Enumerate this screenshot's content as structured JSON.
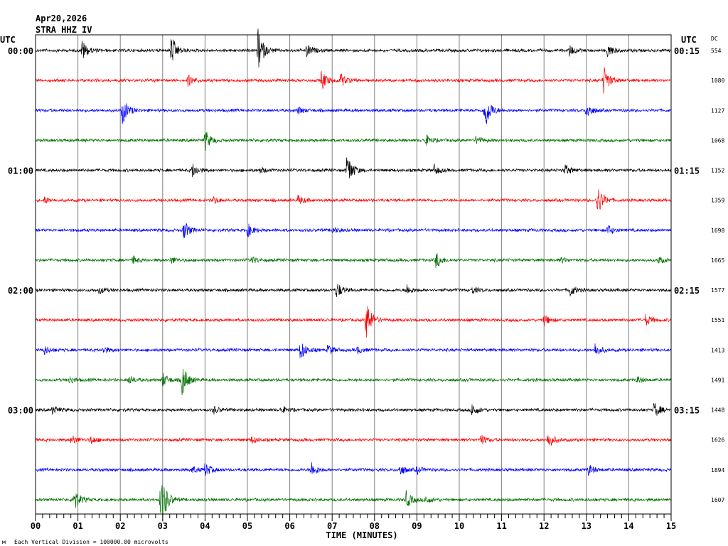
{
  "chart_data": {
    "type": "line",
    "title_date": "Apr20,2026",
    "title_station": "STRA HHZ IV",
    "left_tz": "UTC",
    "right_tz": "UTC",
    "dc_header": "DC",
    "xlabel": "TIME (MINUTES)",
    "xlim": [
      0,
      15
    ],
    "x_ticks": [
      "00",
      "01",
      "02",
      "03",
      "04",
      "05",
      "06",
      "07",
      "08",
      "09",
      "10",
      "11",
      "12",
      "13",
      "14",
      "15"
    ],
    "left_labels": [
      "00:00",
      "01:00",
      "02:00",
      "03:00"
    ],
    "right_labels": [
      "00:15",
      "01:15",
      "02:15",
      "03:15"
    ],
    "footer": "Each Vertical Division = 100000.00 microvolts",
    "footer_mark": "м",
    "colors": [
      "#000000",
      "#ff0000",
      "#0000ff",
      "#007000"
    ],
    "traces": [
      {
        "dc": "554",
        "events": [
          [
            1.1,
            15
          ],
          [
            3.2,
            22
          ],
          [
            5.25,
            30
          ],
          [
            6.4,
            10
          ],
          [
            12.6,
            8
          ],
          [
            13.5,
            10
          ]
        ]
      },
      {
        "dc": "1080",
        "events": [
          [
            3.6,
            8
          ],
          [
            6.75,
            15
          ],
          [
            7.2,
            10
          ],
          [
            13.4,
            22
          ]
        ]
      },
      {
        "dc": "1127",
        "events": [
          [
            2.05,
            20
          ],
          [
            6.2,
            5
          ],
          [
            10.6,
            30
          ],
          [
            13.0,
            12
          ]
        ]
      },
      {
        "dc": "1068",
        "events": [
          [
            4.0,
            15
          ],
          [
            9.2,
            8
          ],
          [
            10.4,
            6
          ]
        ]
      },
      {
        "dc": "1152",
        "events": [
          [
            3.7,
            10
          ],
          [
            5.3,
            4
          ],
          [
            7.35,
            25
          ],
          [
            9.4,
            8
          ],
          [
            12.5,
            8
          ]
        ]
      },
      {
        "dc": "1359",
        "events": [
          [
            0.2,
            5
          ],
          [
            4.2,
            5
          ],
          [
            6.2,
            7
          ],
          [
            13.25,
            25
          ]
        ]
      },
      {
        "dc": "1698",
        "events": [
          [
            3.5,
            14
          ],
          [
            5.0,
            10
          ],
          [
            7.0,
            5
          ],
          [
            13.5,
            8
          ]
        ]
      },
      {
        "dc": "1665",
        "events": [
          [
            2.3,
            5
          ],
          [
            3.2,
            5
          ],
          [
            5.1,
            5
          ],
          [
            9.45,
            12
          ],
          [
            12.4,
            4
          ],
          [
            14.7,
            5
          ]
        ]
      },
      {
        "dc": "1577",
        "events": [
          [
            1.5,
            5
          ],
          [
            7.1,
            12
          ],
          [
            8.75,
            8
          ],
          [
            10.3,
            5
          ],
          [
            12.6,
            10
          ]
        ]
      },
      {
        "dc": "1551",
        "events": [
          [
            7.8,
            30
          ],
          [
            12.0,
            8
          ],
          [
            14.4,
            8
          ]
        ]
      },
      {
        "dc": "1413",
        "events": [
          [
            0.2,
            6
          ],
          [
            1.6,
            5
          ],
          [
            6.25,
            15
          ],
          [
            6.9,
            8
          ],
          [
            7.6,
            5
          ],
          [
            13.2,
            10
          ]
        ]
      },
      {
        "dc": "1491",
        "events": [
          [
            0.8,
            5
          ],
          [
            2.2,
            6
          ],
          [
            3.0,
            10
          ],
          [
            3.45,
            25
          ],
          [
            14.2,
            5
          ]
        ]
      },
      {
        "dc": "1448",
        "events": [
          [
            0.4,
            6
          ],
          [
            4.2,
            5
          ],
          [
            5.8,
            5
          ],
          [
            10.3,
            10
          ],
          [
            14.6,
            12
          ]
        ]
      },
      {
        "dc": "1626",
        "events": [
          [
            0.85,
            7
          ],
          [
            1.3,
            6
          ],
          [
            5.1,
            5
          ],
          [
            10.5,
            8
          ],
          [
            12.1,
            12
          ]
        ]
      },
      {
        "dc": "1894",
        "events": [
          [
            3.7,
            5
          ],
          [
            4.0,
            10
          ],
          [
            6.5,
            12
          ],
          [
            8.6,
            8
          ],
          [
            9.0,
            5
          ],
          [
            13.05,
            8
          ]
        ]
      },
      {
        "dc": "1607",
        "events": [
          [
            0.9,
            18
          ],
          [
            2.95,
            25
          ],
          [
            3.0,
            15
          ],
          [
            8.75,
            12
          ],
          [
            9.2,
            6
          ]
        ]
      }
    ]
  }
}
